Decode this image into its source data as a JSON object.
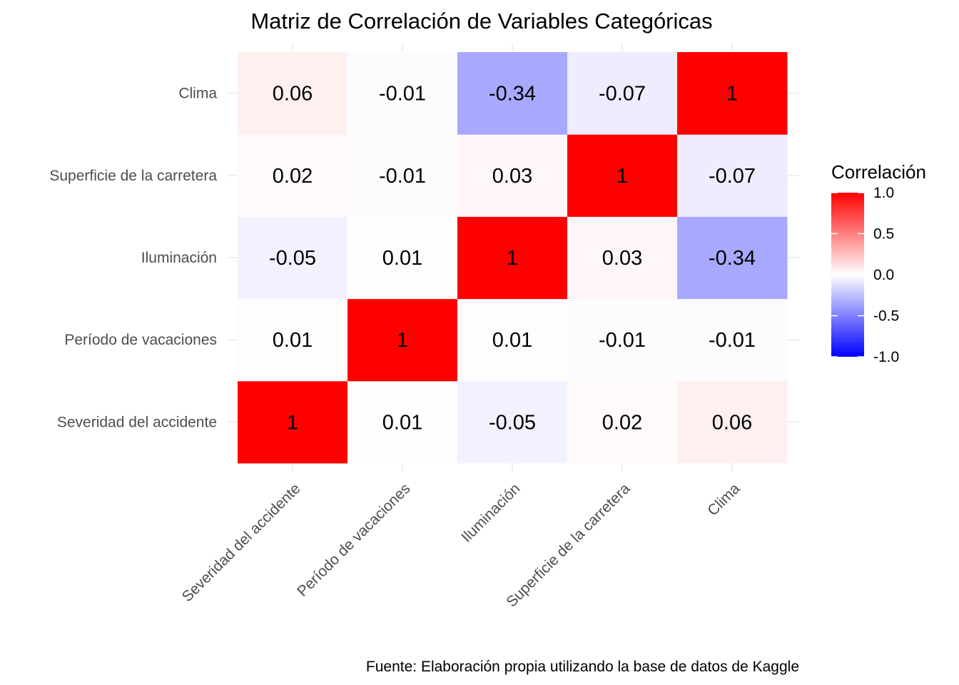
{
  "chart_data": {
    "type": "heatmap",
    "title": "Matriz de Correlación de Variables Categóricas",
    "caption": "Fuente: Elaboración propia utilizando la base de datos de Kaggle",
    "x_categories": [
      "Severidad del accidente",
      "Período de vacaciones",
      "Iluminación",
      "Superficie de la carretera",
      "Clima"
    ],
    "y_categories": [
      "Severidad del accidente",
      "Período de vacaciones",
      "Iluminación",
      "Superficie de la carretera",
      "Clima"
    ],
    "values": [
      [
        1,
        0.01,
        -0.05,
        0.02,
        0.06
      ],
      [
        0.01,
        1,
        0.01,
        -0.01,
        -0.01
      ],
      [
        -0.05,
        0.01,
        1,
        0.03,
        -0.34
      ],
      [
        0.02,
        -0.01,
        0.03,
        1,
        -0.07
      ],
      [
        0.06,
        -0.01,
        -0.34,
        -0.07,
        1
      ]
    ],
    "cell_labels": [
      [
        "1",
        "0.01",
        "-0.05",
        "0.02",
        "0.06"
      ],
      [
        "0.01",
        "1",
        "0.01",
        "-0.01",
        "-0.01"
      ],
      [
        "-0.05",
        "0.01",
        "1",
        "0.03",
        "-0.34"
      ],
      [
        "0.02",
        "-0.01",
        "0.03",
        "1",
        "-0.07"
      ],
      [
        "0.06",
        "-0.01",
        "-0.34",
        "-0.07",
        "1"
      ]
    ],
    "legend": {
      "title": "Correlación",
      "ticks": [
        "1.0",
        "0.5",
        "0.0",
        "-0.5",
        "-1.0"
      ],
      "tick_values": [
        1.0,
        0.5,
        0.0,
        -0.5,
        -1.0
      ],
      "range": [
        -1,
        1
      ],
      "low_color": "#0000ff",
      "mid_color": "#ffffff",
      "high_color": "#ff0000",
      "placement": "right"
    },
    "grid": true
  }
}
